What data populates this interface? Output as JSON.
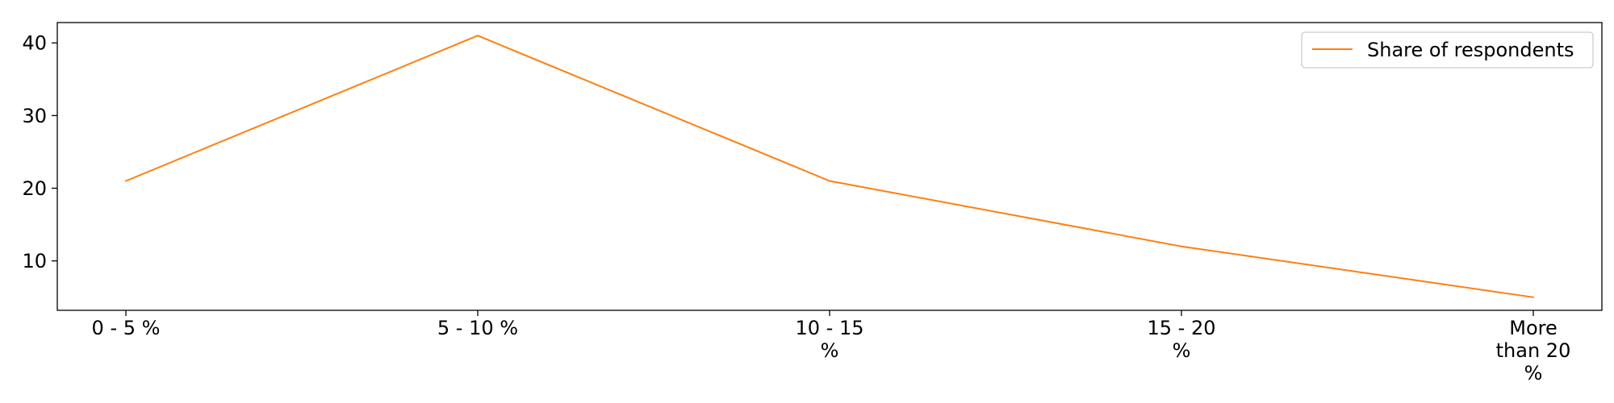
{
  "chart_data": {
    "type": "line",
    "categories": [
      "0 - 5 %",
      "5 - 10 %",
      "10 - 15 %",
      "15 - 20 %",
      "More than 20 %"
    ],
    "category_label_lines": [
      [
        "0 - 5 %"
      ],
      [
        "5 - 10 %"
      ],
      [
        "10 - 15",
        "%"
      ],
      [
        "15 - 20",
        "%"
      ],
      [
        "More",
        "than 20",
        "%"
      ]
    ],
    "series": [
      {
        "name": "Share of respondents",
        "values": [
          21,
          41,
          21,
          12,
          5
        ],
        "color": "#ff7f0e"
      }
    ],
    "title": "",
    "xlabel": "",
    "ylabel": "",
    "ylim": [
      3.2,
      42.8
    ],
    "yticks": [
      10,
      20,
      30,
      40
    ],
    "grid": false,
    "legend_position": "top-right"
  }
}
